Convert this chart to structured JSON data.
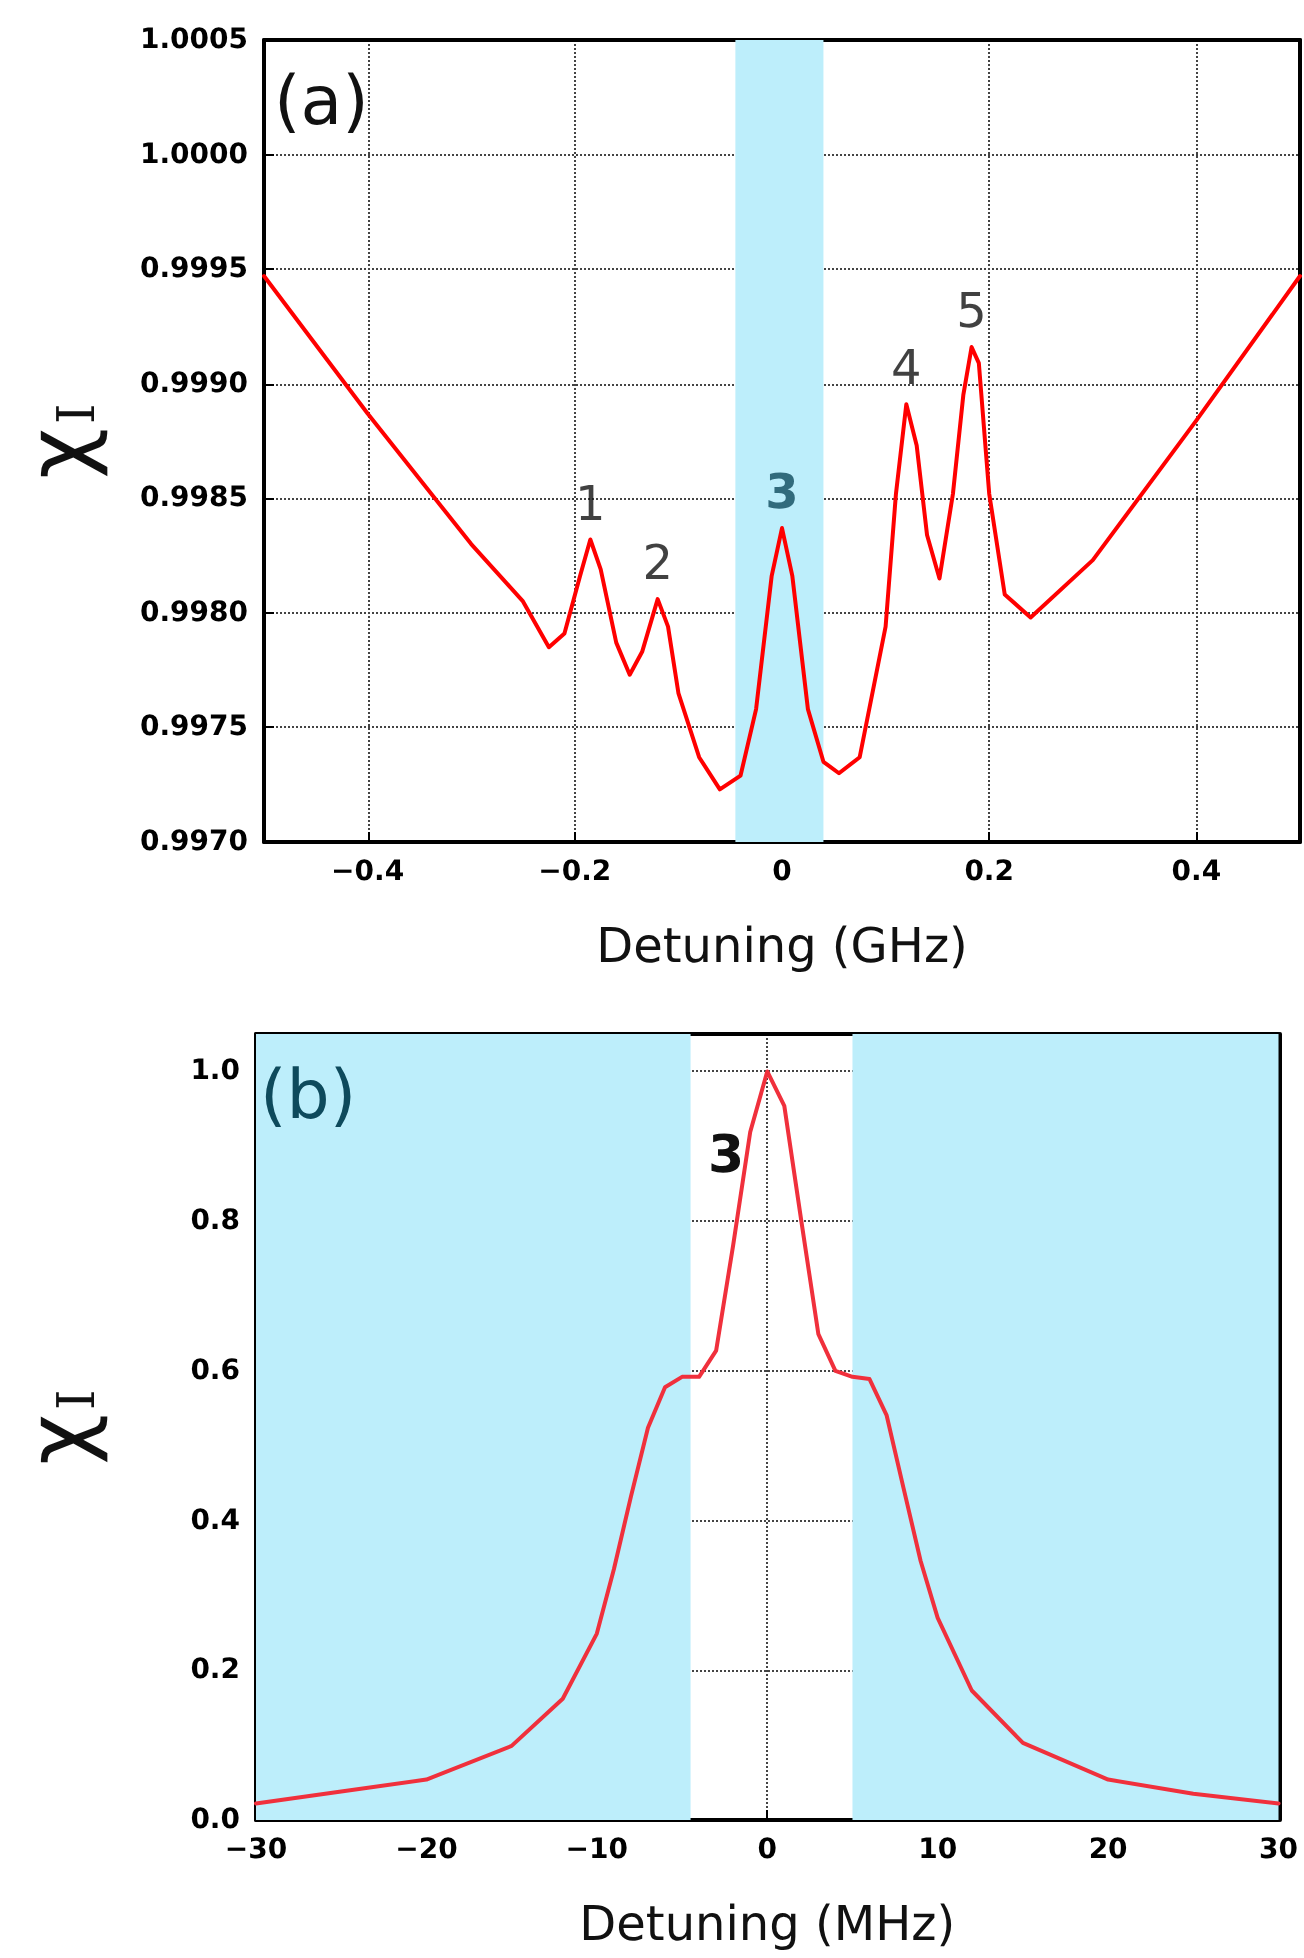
{
  "chart_data": [
    {
      "type": "line",
      "xlabel": "Detuning (GHz)",
      "ylabel": "χ$_{I}$",
      "xlim": [
        -0.5,
        0.5
      ],
      "xticks": [
        -0.4,
        -0.2,
        0.0,
        0.2,
        0.4
      ],
      "ylim": [
        0.997,
        1.0005
      ],
      "yticks": [
        {
          "value": 0.997,
          "label": "0.9970"
        },
        {
          "value": 0.9975,
          "label": "0.9975"
        },
        {
          "value": 0.998,
          "label": "0.9980"
        },
        {
          "value": 0.9985,
          "label": "0.9985"
        },
        {
          "value": 0.999,
          "label": "0.9990"
        },
        {
          "value": 0.9995,
          "label": "0.9995"
        },
        {
          "value": 1.0,
          "label": "1.0000"
        },
        {
          "value": 1.0005,
          "label": "1.0005"
        }
      ],
      "grid": true,
      "x": [
        -0.5,
        -0.4,
        -0.3,
        -0.25,
        -0.225,
        -0.21,
        -0.195,
        -0.185,
        -0.175,
        -0.16,
        -0.147,
        -0.135,
        -0.12,
        -0.11,
        -0.1,
        -0.08,
        -0.06,
        -0.04,
        -0.025,
        -0.01,
        0.0,
        0.01,
        0.025,
        0.04,
        0.055,
        0.075,
        0.1,
        0.11,
        0.12,
        0.13,
        0.14,
        0.152,
        0.165,
        0.175,
        0.183,
        0.19,
        0.2,
        0.215,
        0.24,
        0.3,
        0.4,
        0.5
      ],
      "series": [
        {
          "color": "#ff0000",
          "values": [
            0.99947,
            0.99887,
            0.9983,
            0.99805,
            0.99785,
            0.99791,
            0.99816,
            0.99832,
            0.99819,
            0.99787,
            0.99773,
            0.99783,
            0.99806,
            0.99794,
            0.99765,
            0.99737,
            0.99723,
            0.99729,
            0.99758,
            0.99816,
            0.99837,
            0.99816,
            0.99758,
            0.99735,
            0.9973,
            0.99737,
            0.99794,
            0.99852,
            0.99891,
            0.99873,
            0.99834,
            0.99815,
            0.99852,
            0.99895,
            0.99916,
            0.99909,
            0.99852,
            0.99808,
            0.99798,
            0.99823,
            0.99884,
            0.99947
          ]
        }
      ],
      "bands": [
        {
          "axis": "x",
          "from": -0.045,
          "to": 0.04,
          "color": "#bdeefb"
        }
      ],
      "annotations": [
        "(a)",
        {
          "text": "1",
          "x": -0.185,
          "y": 0.99832
        },
        {
          "text": "2",
          "x": -0.12,
          "y": 0.99806
        },
        {
          "text": "3",
          "x": 0.0,
          "y": 0.99837
        },
        {
          "text": "4",
          "x": 0.12,
          "y": 0.99891
        },
        {
          "text": "5",
          "x": 0.183,
          "y": 0.99916
        }
      ]
    },
    {
      "type": "line",
      "xlabel": "Detuning (MHz)",
      "ylabel": "χ$_{I}$",
      "xlim": [
        -30,
        30
      ],
      "xticks": [
        -30,
        -20,
        -10,
        0,
        10,
        20,
        30
      ],
      "ylim": [
        0,
        1.05
      ],
      "yticks": [
        {
          "value": 0,
          "label": "0.0"
        },
        0.2,
        0.4,
        0.6,
        0.8,
        {
          "value": 1,
          "label": "1.0"
        }
      ],
      "grid": true,
      "x": [
        -30,
        -25,
        -20,
        -15,
        -12,
        -10,
        -9,
        -8,
        -7,
        -6,
        -5,
        -4,
        -3,
        -2,
        -1,
        0,
        1,
        2,
        3,
        4,
        5,
        6,
        7,
        8,
        9,
        10,
        12,
        15,
        20,
        25,
        30
      ],
      "series": [
        {
          "color": "#f0303c",
          "values": [
            0.022,
            0.038,
            0.054,
            0.099,
            0.162,
            0.249,
            0.335,
            0.432,
            0.524,
            0.578,
            0.592,
            0.592,
            0.627,
            0.768,
            0.919,
            1.0,
            0.954,
            0.8,
            0.649,
            0.6,
            0.592,
            0.589,
            0.541,
            0.443,
            0.346,
            0.27,
            0.173,
            0.103,
            0.054,
            0.035,
            0.022
          ]
        }
      ],
      "bands": [
        {
          "axis": "x",
          "from": -30,
          "to": -4.5,
          "color": "#bdeefb"
        },
        {
          "axis": "x",
          "from": 5,
          "to": 30,
          "color": "#bdeefb"
        }
      ],
      "annotations": [
        "(b)",
        "3"
      ]
    }
  ]
}
